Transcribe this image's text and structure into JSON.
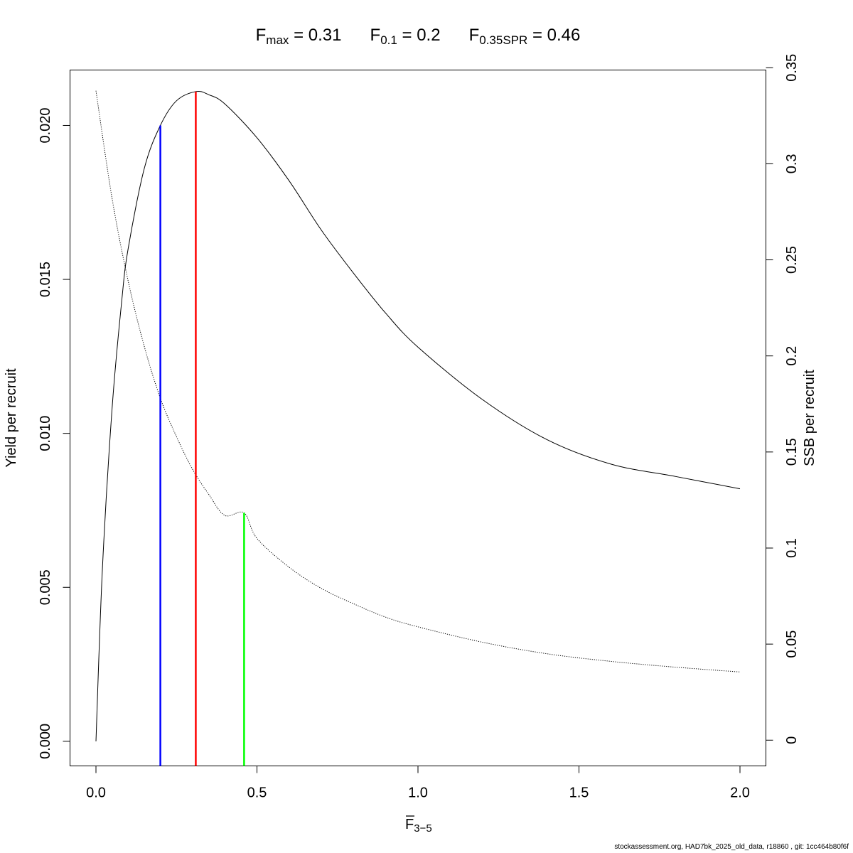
{
  "title": {
    "fmax": {
      "symbol": "F",
      "subscript": "max",
      "value": "0.31"
    },
    "f01": {
      "symbol": "F",
      "subscript": "0.1",
      "value": "0.2"
    },
    "fspr": {
      "symbol": "F",
      "subscript": "0.35SPR",
      "value": "0.46"
    }
  },
  "footer": "stockassessment.org, HAD7bk_2025_old_data, r18860 , git: 1cc464b80f6f",
  "chart_data": {
    "type": "line",
    "xlabel": {
      "symbol": "F",
      "subscript": "3−5",
      "overline": true
    },
    "ylabel_left": "Yield per recruit",
    "ylabel_right": "SSB per recruit",
    "xlim": [
      0,
      2
    ],
    "ylim_left": [
      -0.0008,
      0.0218
    ],
    "ylim_right": [
      -0.0134,
      0.3488
    ],
    "x_ticks": [
      0,
      0.5,
      1,
      1.5,
      2
    ],
    "x_tick_labels": [
      "0.0",
      "0.5",
      "1.0",
      "1.5",
      "2.0"
    ],
    "y_left_ticks": [
      0,
      0.005,
      0.01,
      0.015,
      0.02
    ],
    "y_left_tick_labels": [
      "0.000",
      "0.005",
      "0.010",
      "0.015",
      "0.020"
    ],
    "y_right_ticks": [
      0,
      0.05,
      0.1,
      0.15,
      0.2,
      0.25,
      0.3,
      0.35
    ],
    "y_right_tick_labels": [
      "0",
      "0.05",
      "0.1",
      "0.15",
      "0.2",
      "0.25",
      "0.3",
      "0.35"
    ],
    "grid": false,
    "series": [
      {
        "axis": "left",
        "style": "solid",
        "color": "#000000",
        "x": [
          0,
          0.02,
          0.05,
          0.08,
          0.1,
          0.15,
          0.2,
          0.25,
          0.31,
          0.35,
          0.4,
          0.5,
          0.6,
          0.7,
          0.8,
          0.9,
          1.0,
          1.2,
          1.4,
          1.6,
          1.8,
          2.0
        ],
        "y": [
          0,
          0.0056,
          0.0108,
          0.0143,
          0.016,
          0.0186,
          0.02,
          0.0208,
          0.0211,
          0.021,
          0.0207,
          0.0196,
          0.0182,
          0.0166,
          0.0152,
          0.0139,
          0.0128,
          0.0111,
          0.0098,
          0.009,
          0.0086,
          0.0082
        ]
      },
      {
        "axis": "right",
        "style": "dotted",
        "color": "#000000",
        "x": [
          0,
          0.05,
          0.1,
          0.15,
          0.2,
          0.25,
          0.3,
          0.35,
          0.4,
          0.46,
          0.5,
          0.6,
          0.7,
          0.8,
          0.9,
          1.0,
          1.2,
          1.4,
          1.6,
          1.8,
          2.0
        ],
        "y": [
          0.338,
          0.282,
          0.239,
          0.205,
          0.178,
          0.158,
          0.141,
          0.128,
          0.117,
          0.1183,
          0.105,
          0.09,
          0.079,
          0.071,
          0.064,
          0.059,
          0.051,
          0.045,
          0.041,
          0.038,
          0.0355
        ]
      }
    ],
    "reference_lines": [
      {
        "name": "F0.1",
        "x": 0.2,
        "y_top": 0.02,
        "axis": "left",
        "color": "#0000ff"
      },
      {
        "name": "Fmax",
        "x": 0.31,
        "y_top": 0.0211,
        "axis": "left",
        "color": "#ff0000"
      },
      {
        "name": "F0.35SPR",
        "x": 0.46,
        "y_top": 0.1183,
        "axis": "right",
        "color": "#00ff00"
      }
    ]
  }
}
